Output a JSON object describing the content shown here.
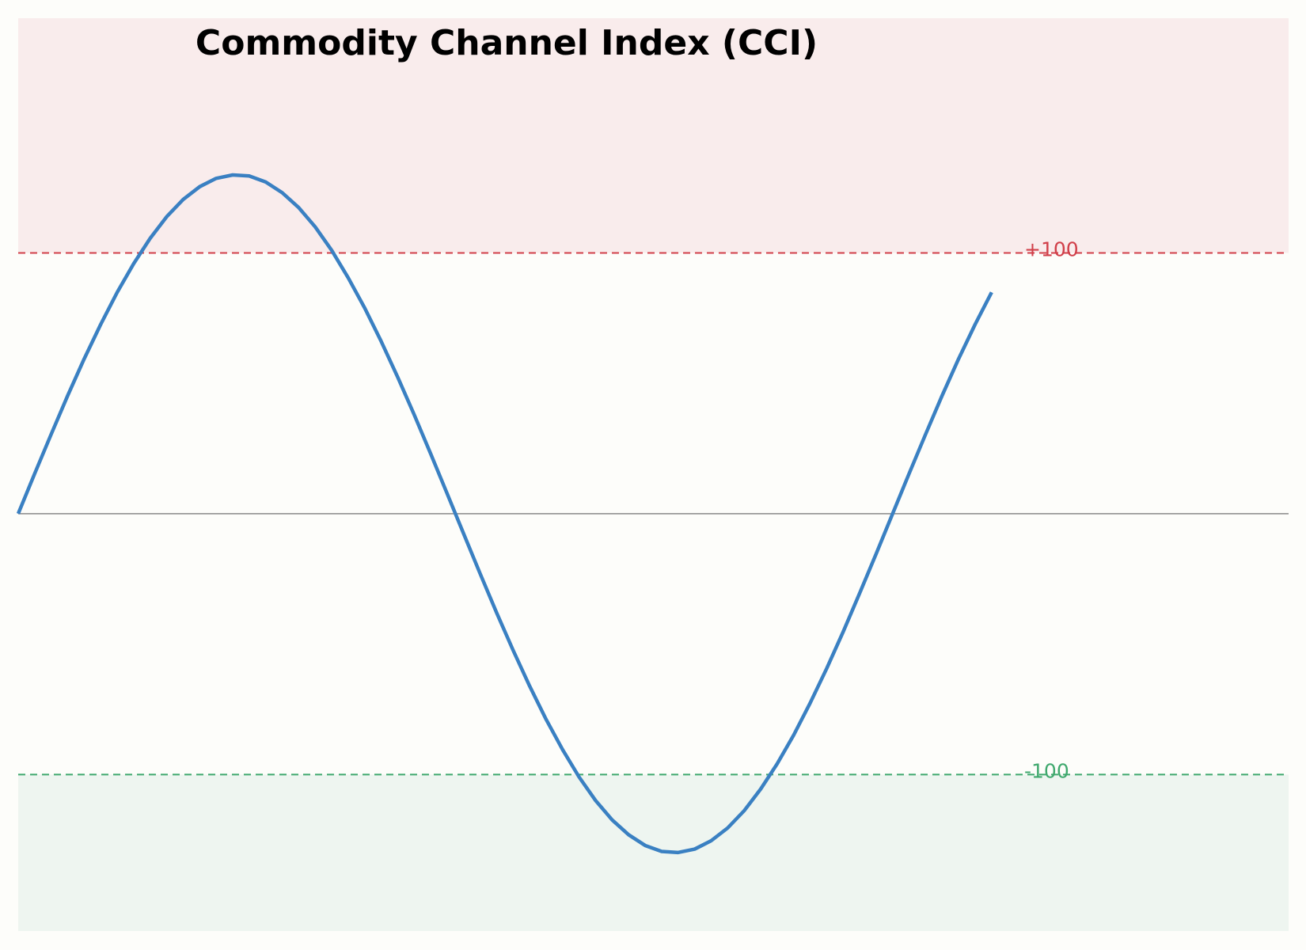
{
  "chart_data": {
    "type": "line",
    "title": "Commodity Channel Index (CCI)",
    "x": [
      0,
      1,
      2,
      3,
      4,
      5,
      6,
      7,
      8,
      9,
      10,
      11,
      12,
      13,
      14,
      15,
      16,
      17,
      18,
      19,
      20,
      21,
      22,
      23,
      24,
      25,
      26,
      27,
      28,
      29,
      30,
      31,
      32,
      33,
      34,
      35,
      36,
      37,
      38,
      39,
      40,
      41,
      42,
      43,
      44,
      45,
      46,
      47,
      48,
      49,
      50,
      51,
      52,
      53,
      54,
      55,
      56,
      57,
      58,
      59
    ],
    "series": [
      {
        "color": "#3a80c2",
        "values": [
          0,
          15.4,
          30.5,
          45.3,
          59.4,
          72.6,
          84.9,
          95.9,
          105.6,
          113.9,
          120.5,
          125.4,
          128.6,
          129.9,
          129.5,
          127.2,
          123.1,
          117.4,
          110.0,
          101.0,
          90.5,
          78.9,
          66.1,
          52.4,
          38.0,
          23.0,
          7.7,
          -7.7,
          -23.0,
          -38.0,
          -52.4,
          -66.1,
          -78.9,
          -90.5,
          -101.0,
          -110.0,
          -117.4,
          -123.1,
          -127.2,
          -129.5,
          -129.9,
          -128.6,
          -125.4,
          -120.5,
          -113.9,
          -105.6,
          -95.9,
          -84.9,
          -72.6,
          -59.4,
          -45.3,
          -30.5,
          -15.4,
          0,
          15.4,
          30.5,
          45.3,
          59.4,
          72.6,
          84.9
        ]
      }
    ],
    "xlim": [
      0,
      77
    ],
    "ylim": [
      -160,
      190
    ],
    "reference_lines": [
      {
        "value": 100,
        "label": "+100",
        "color": "#d1404a",
        "fill": "#f9ecec",
        "fill_side": "above"
      },
      {
        "value": -100,
        "label": "-100",
        "color": "#3fa86d",
        "fill": "#eef5f0",
        "fill_side": "below"
      },
      {
        "value": 0,
        "color": "#888888"
      }
    ]
  }
}
